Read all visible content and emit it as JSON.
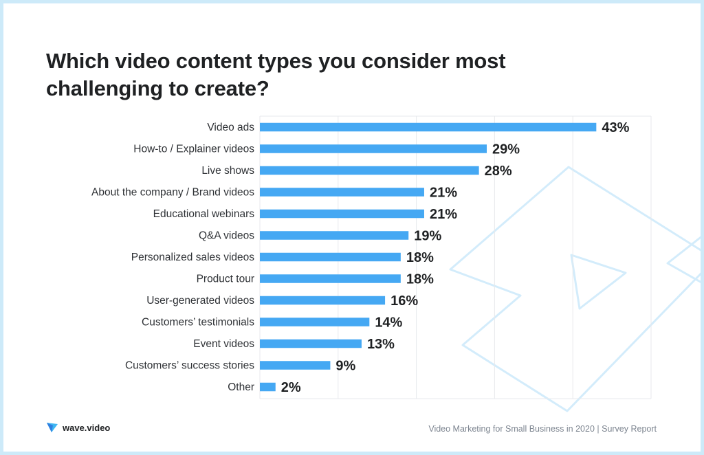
{
  "title": "Which video content types you consider most challenging to create?",
  "brand": {
    "name": "wave.video",
    "colors": {
      "bar": "#45a8f3",
      "decor": "#d3ecfb",
      "frame": "#cdeaf9",
      "text": "#1f2123"
    }
  },
  "footer": {
    "source": "Video Marketing for Small Business in 2020 | Survey Report"
  },
  "chart_data": {
    "type": "bar",
    "orientation": "horizontal",
    "title": "Which video content types you consider most challenging to create?",
    "categories": [
      "Video ads",
      "How-to / Explainer videos",
      "Live shows",
      "About the company / Brand videos",
      "Educational webinars",
      "Q&A videos",
      "Personalized sales videos",
      "Product tour",
      "User-generated videos",
      "Customers’ testimonials",
      "Event videos",
      "Customers’ success stories",
      "Other"
    ],
    "values": [
      43,
      29,
      28,
      21,
      21,
      19,
      18,
      18,
      16,
      14,
      13,
      9,
      2
    ],
    "value_labels": [
      "43%",
      "29%",
      "28%",
      "21%",
      "21%",
      "19%",
      "18%",
      "18%",
      "16%",
      "14%",
      "13%",
      "9%",
      "2%"
    ],
    "xlim": [
      0,
      50
    ],
    "grid": "vertical",
    "legend": "none"
  }
}
